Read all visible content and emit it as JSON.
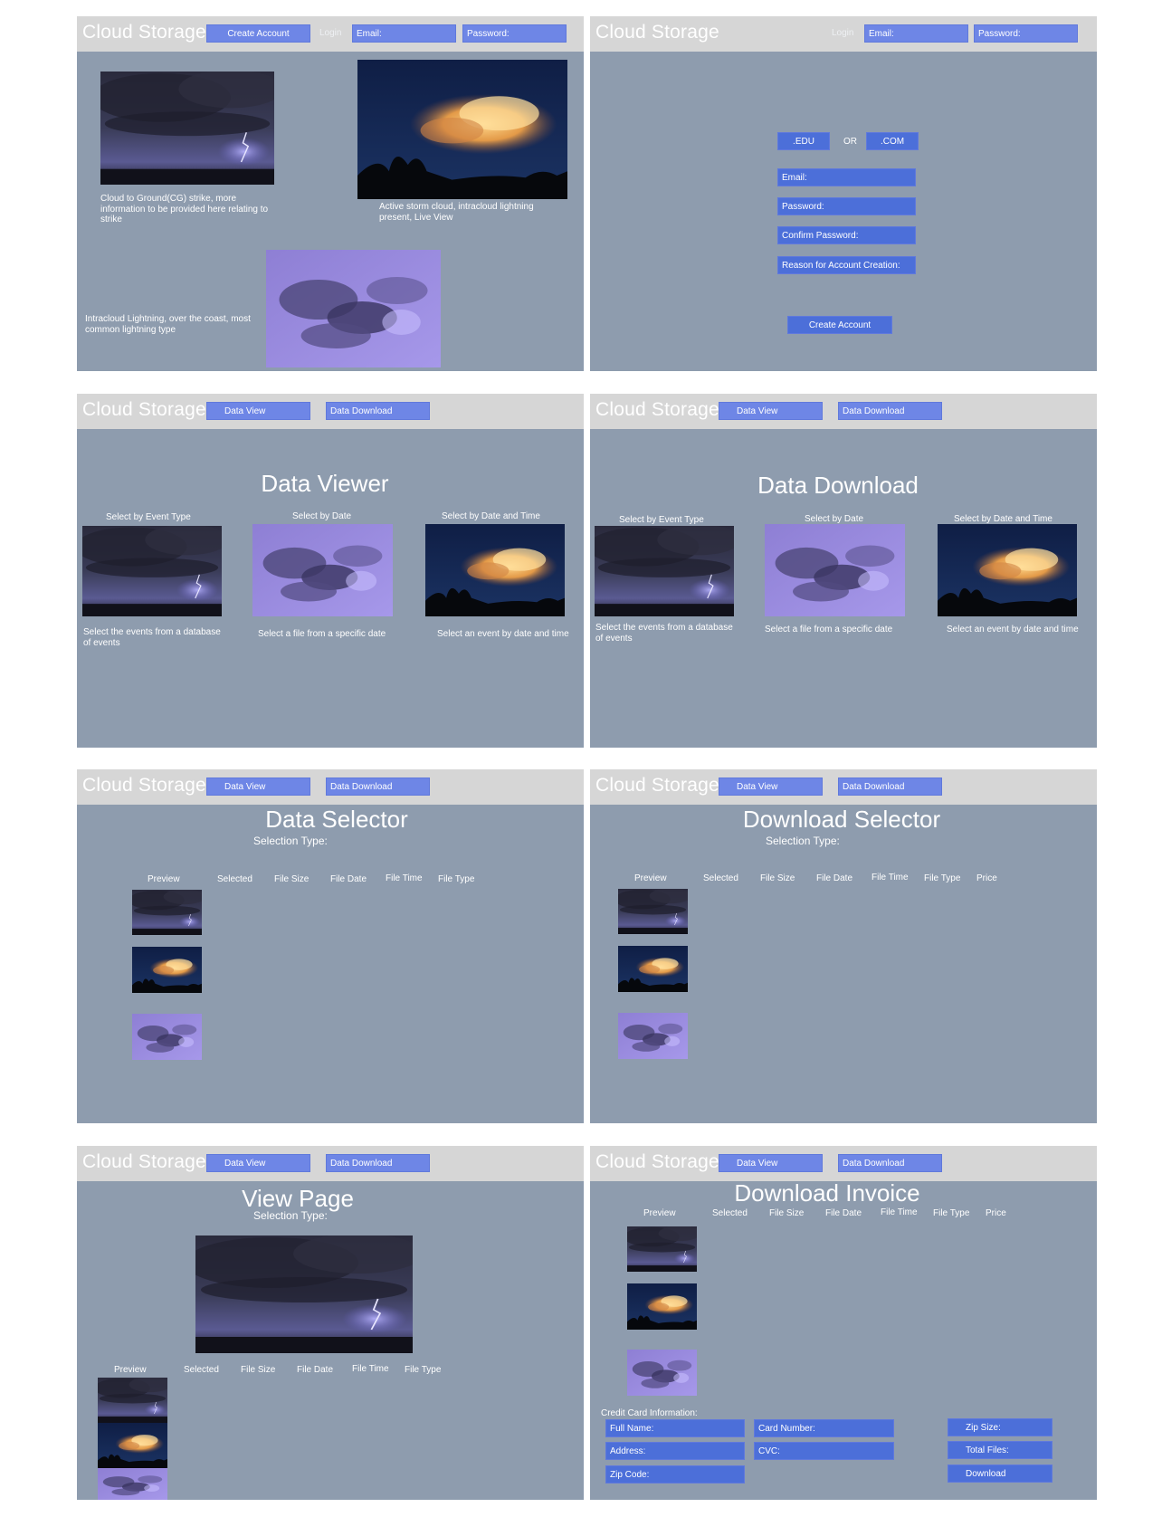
{
  "brand": "Cloud Storage",
  "nav": {
    "create_account": "Create Account",
    "login": "Login",
    "email": "Email:",
    "password": "Password:",
    "data_view": "Data View",
    "data_download": "Data Download"
  },
  "home": {
    "caption_cg": "Cloud to Ground(CG) strike, more information to be provided here relating to strike",
    "caption_storm": "Active storm cloud, intracloud lightning present, Live View",
    "caption_intracloud": "Intracloud Lightning, over the coast, most common lightning type"
  },
  "signup": {
    "edu": ".EDU",
    "or": "OR",
    "com": ".COM",
    "email": "Email:",
    "password": "Password:",
    "confirm_password": "Confirm Password:",
    "reason": "Reason for Account Creation:",
    "create_account": "Create Account"
  },
  "viewer": {
    "title": "Data Viewer",
    "sel_event": "Select by Event Type",
    "sel_date": "Select by Date",
    "sel_datetime": "Select by Date and Time",
    "desc_event": "Select the events from a database of events",
    "desc_date": "Select a file from a specific date",
    "desc_datetime": "Select an event by date and time"
  },
  "download": {
    "title": "Data Download",
    "sel_event": "Select by Event Type",
    "sel_date": "Select by Date",
    "sel_datetime": "Select by Date and Time",
    "desc_event": "Select the events from a database of events",
    "desc_date": "Select a file from a specific date",
    "desc_datetime": "Select an event by date and time"
  },
  "selector": {
    "title": "Data Selector",
    "selection_type": "Selection Type:"
  },
  "dl_selector": {
    "title": "Download Selector",
    "selection_type": "Selection Type:"
  },
  "view_page": {
    "title": "View Page",
    "selection_type": "Selection Type:"
  },
  "invoice": {
    "title": "Download Invoice",
    "cc_info": "Credit Card Information:",
    "full_name": "Full Name:",
    "address": "Address:",
    "zip_code": "Zip Code:",
    "card_number": "Card Number:",
    "cvc": "CVC:",
    "zip_size": "Zip Size:",
    "total_files": "Total Files:",
    "download": "Download"
  },
  "columns": {
    "preview": "Preview",
    "selected": "Selected",
    "file_size": "File Size",
    "file_date": "File Date",
    "file_time": "File Time",
    "file_type": "File Type",
    "price": "Price"
  },
  "colors": {
    "frame_bg": "#8e9cae",
    "header_bg": "#d6d6d6",
    "button": "#6e86e6",
    "button_dark": "#4c6fd9"
  },
  "image_types": [
    "cg-lightning-photo",
    "storm-cloud-photo",
    "intracloud-lightning-photo"
  ]
}
